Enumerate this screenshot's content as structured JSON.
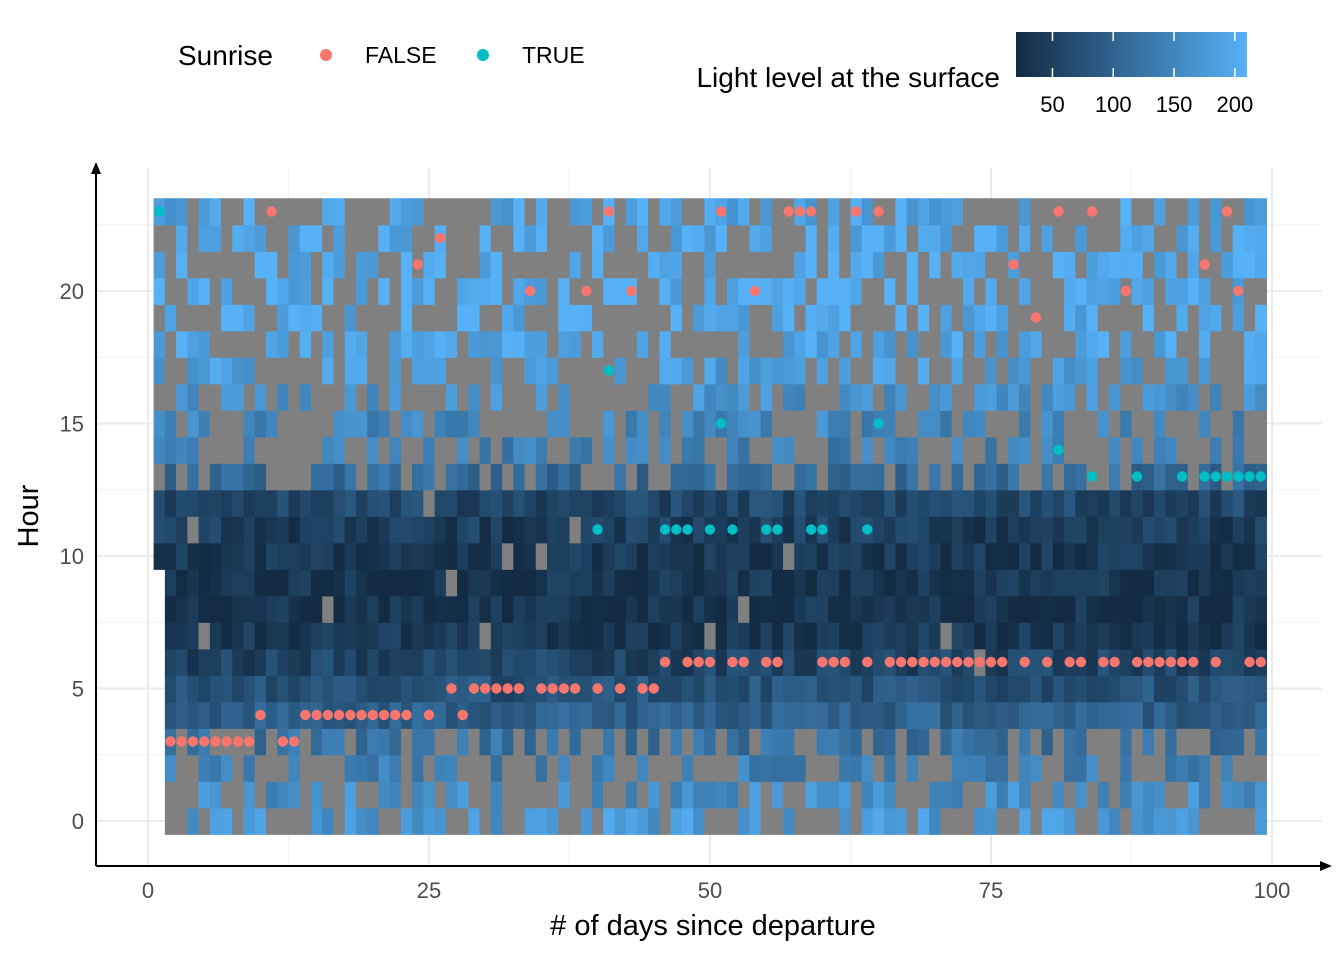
{
  "chart_data": {
    "type": "heatmap",
    "xlabel": "# of days since departure",
    "ylabel": "Hour",
    "xlim": [
      -1,
      100.5
    ],
    "ylim": [
      -1.7,
      24.4
    ],
    "x_ticks": [
      0,
      25,
      50,
      75,
      100
    ],
    "y_ticks": [
      0,
      5,
      10,
      15,
      20
    ],
    "grid": true,
    "colorbar": {
      "title": "Light level at the surface",
      "ticks": [
        50,
        100,
        150,
        200
      ],
      "range": [
        20,
        210
      ],
      "low_color": "#132B43",
      "high_color": "#56B1F7",
      "na_color": "#808080"
    },
    "legend": {
      "title": "Sunrise",
      "position": "top",
      "entries": [
        {
          "label": "FALSE",
          "color": "#F8766D"
        },
        {
          "label": "TRUE",
          "color": "#00BFC4"
        }
      ]
    },
    "heatmap_note_days": [
      1,
      99
    ],
    "hour_profile": [
      {
        "hour": 0,
        "level": 175
      },
      {
        "hour": 1,
        "level": 160
      },
      {
        "hour": 2,
        "level": 140
      },
      {
        "hour": 3,
        "level": 120
      },
      {
        "hour": 4,
        "level": 95
      },
      {
        "hour": 5,
        "level": 75
      },
      {
        "hour": 6,
        "level": 55
      },
      {
        "hour": 7,
        "level": 35
      },
      {
        "hour": 8,
        "level": 30
      },
      {
        "hour": 9,
        "level": 30
      },
      {
        "hour": 10,
        "level": 35
      },
      {
        "hour": 11,
        "level": 45
      },
      {
        "hour": 12,
        "level": 60
      },
      {
        "hour": 13,
        "level": 110
      },
      {
        "hour": 14,
        "level": 140
      },
      {
        "hour": 15,
        "level": 150
      },
      {
        "hour": 16,
        "level": 165
      },
      {
        "hour": 17,
        "level": 180
      },
      {
        "hour": 18,
        "level": 190
      },
      {
        "hour": 19,
        "level": 195
      },
      {
        "hour": 20,
        "level": 200
      },
      {
        "hour": 21,
        "level": 200
      },
      {
        "hour": 22,
        "level": 195
      },
      {
        "hour": 23,
        "level": 190
      }
    ],
    "sunrise_points": [
      {
        "day": 1,
        "hour": 23,
        "sunrise": true
      },
      {
        "day": 2,
        "hour": 3,
        "sunrise": false
      },
      {
        "day": 3,
        "hour": 3,
        "sunrise": false
      },
      {
        "day": 4,
        "hour": 3,
        "sunrise": false
      },
      {
        "day": 5,
        "hour": 3,
        "sunrise": false
      },
      {
        "day": 6,
        "hour": 3,
        "sunrise": false
      },
      {
        "day": 7,
        "hour": 3,
        "sunrise": false
      },
      {
        "day": 8,
        "hour": 3,
        "sunrise": false
      },
      {
        "day": 9,
        "hour": 3,
        "sunrise": false
      },
      {
        "day": 10,
        "hour": 4,
        "sunrise": false
      },
      {
        "day": 11,
        "hour": 23,
        "sunrise": false
      },
      {
        "day": 12,
        "hour": 3,
        "sunrise": false
      },
      {
        "day": 13,
        "hour": 3,
        "sunrise": false
      },
      {
        "day": 14,
        "hour": 4,
        "sunrise": false
      },
      {
        "day": 15,
        "hour": 4,
        "sunrise": false
      },
      {
        "day": 16,
        "hour": 4,
        "sunrise": false
      },
      {
        "day": 17,
        "hour": 4,
        "sunrise": false
      },
      {
        "day": 18,
        "hour": 4,
        "sunrise": false
      },
      {
        "day": 19,
        "hour": 4,
        "sunrise": false
      },
      {
        "day": 20,
        "hour": 4,
        "sunrise": false
      },
      {
        "day": 21,
        "hour": 4,
        "sunrise": false
      },
      {
        "day": 22,
        "hour": 4,
        "sunrise": false
      },
      {
        "day": 23,
        "hour": 4,
        "sunrise": false
      },
      {
        "day": 24,
        "hour": 21,
        "sunrise": false
      },
      {
        "day": 25,
        "hour": 4,
        "sunrise": false
      },
      {
        "day": 26,
        "hour": 22,
        "sunrise": false
      },
      {
        "day": 27,
        "hour": 5,
        "sunrise": false
      },
      {
        "day": 28,
        "hour": 4,
        "sunrise": false
      },
      {
        "day": 29,
        "hour": 5,
        "sunrise": false
      },
      {
        "day": 30,
        "hour": 5,
        "sunrise": false
      },
      {
        "day": 31,
        "hour": 5,
        "sunrise": false
      },
      {
        "day": 32,
        "hour": 5,
        "sunrise": false
      },
      {
        "day": 33,
        "hour": 5,
        "sunrise": false
      },
      {
        "day": 34,
        "hour": 20,
        "sunrise": false
      },
      {
        "day": 35,
        "hour": 5,
        "sunrise": false
      },
      {
        "day": 36,
        "hour": 5,
        "sunrise": false
      },
      {
        "day": 37,
        "hour": 5,
        "sunrise": false
      },
      {
        "day": 38,
        "hour": 5,
        "sunrise": false
      },
      {
        "day": 39,
        "hour": 20,
        "sunrise": false
      },
      {
        "day": 40,
        "hour": 5,
        "sunrise": false
      },
      {
        "day": 40,
        "hour": 11,
        "sunrise": true
      },
      {
        "day": 41,
        "hour": 17,
        "sunrise": true
      },
      {
        "day": 41,
        "hour": 23,
        "sunrise": false
      },
      {
        "day": 42,
        "hour": 5,
        "sunrise": false
      },
      {
        "day": 43,
        "hour": 20,
        "sunrise": false
      },
      {
        "day": 44,
        "hour": 5,
        "sunrise": false
      },
      {
        "day": 45,
        "hour": 5,
        "sunrise": false
      },
      {
        "day": 46,
        "hour": 6,
        "sunrise": false
      },
      {
        "day": 46,
        "hour": 11,
        "sunrise": true
      },
      {
        "day": 47,
        "hour": 11,
        "sunrise": true
      },
      {
        "day": 48,
        "hour": 6,
        "sunrise": false
      },
      {
        "day": 48,
        "hour": 11,
        "sunrise": true
      },
      {
        "day": 49,
        "hour": 6,
        "sunrise": false
      },
      {
        "day": 50,
        "hour": 6,
        "sunrise": false
      },
      {
        "day": 50,
        "hour": 11,
        "sunrise": true
      },
      {
        "day": 51,
        "hour": 15,
        "sunrise": true
      },
      {
        "day": 51,
        "hour": 23,
        "sunrise": false
      },
      {
        "day": 52,
        "hour": 6,
        "sunrise": false
      },
      {
        "day": 52,
        "hour": 11,
        "sunrise": true
      },
      {
        "day": 53,
        "hour": 6,
        "sunrise": false
      },
      {
        "day": 54,
        "hour": 20,
        "sunrise": false
      },
      {
        "day": 55,
        "hour": 6,
        "sunrise": false
      },
      {
        "day": 55,
        "hour": 11,
        "sunrise": true
      },
      {
        "day": 56,
        "hour": 6,
        "sunrise": false
      },
      {
        "day": 56,
        "hour": 11,
        "sunrise": true
      },
      {
        "day": 57,
        "hour": 23,
        "sunrise": false
      },
      {
        "day": 58,
        "hour": 23,
        "sunrise": false
      },
      {
        "day": 59,
        "hour": 23,
        "sunrise": false
      },
      {
        "day": 59,
        "hour": 11,
        "sunrise": true
      },
      {
        "day": 60,
        "hour": 6,
        "sunrise": false
      },
      {
        "day": 60,
        "hour": 11,
        "sunrise": true
      },
      {
        "day": 61,
        "hour": 6,
        "sunrise": false
      },
      {
        "day": 62,
        "hour": 6,
        "sunrise": false
      },
      {
        "day": 63,
        "hour": 23,
        "sunrise": false
      },
      {
        "day": 64,
        "hour": 6,
        "sunrise": false
      },
      {
        "day": 64,
        "hour": 11,
        "sunrise": true
      },
      {
        "day": 65,
        "hour": 15,
        "sunrise": true
      },
      {
        "day": 65,
        "hour": 23,
        "sunrise": false
      },
      {
        "day": 66,
        "hour": 6,
        "sunrise": false
      },
      {
        "day": 67,
        "hour": 6,
        "sunrise": false
      },
      {
        "day": 68,
        "hour": 6,
        "sunrise": false
      },
      {
        "day": 69,
        "hour": 6,
        "sunrise": false
      },
      {
        "day": 70,
        "hour": 6,
        "sunrise": false
      },
      {
        "day": 71,
        "hour": 6,
        "sunrise": false
      },
      {
        "day": 72,
        "hour": 6,
        "sunrise": false
      },
      {
        "day": 73,
        "hour": 6,
        "sunrise": false
      },
      {
        "day": 74,
        "hour": 6,
        "sunrise": false
      },
      {
        "day": 75,
        "hour": 6,
        "sunrise": false
      },
      {
        "day": 76,
        "hour": 6,
        "sunrise": false
      },
      {
        "day": 77,
        "hour": 21,
        "sunrise": false
      },
      {
        "day": 78,
        "hour": 6,
        "sunrise": false
      },
      {
        "day": 79,
        "hour": 19,
        "sunrise": false
      },
      {
        "day": 80,
        "hour": 6,
        "sunrise": false
      },
      {
        "day": 81,
        "hour": 14,
        "sunrise": true
      },
      {
        "day": 81,
        "hour": 23,
        "sunrise": false
      },
      {
        "day": 82,
        "hour": 6,
        "sunrise": false
      },
      {
        "day": 83,
        "hour": 6,
        "sunrise": false
      },
      {
        "day": 84,
        "hour": 13,
        "sunrise": true
      },
      {
        "day": 84,
        "hour": 23,
        "sunrise": false
      },
      {
        "day": 85,
        "hour": 6,
        "sunrise": false
      },
      {
        "day": 86,
        "hour": 6,
        "sunrise": false
      },
      {
        "day": 87,
        "hour": 20,
        "sunrise": false
      },
      {
        "day": 88,
        "hour": 13,
        "sunrise": true
      },
      {
        "day": 88,
        "hour": 6,
        "sunrise": false
      },
      {
        "day": 89,
        "hour": 6,
        "sunrise": false
      },
      {
        "day": 90,
        "hour": 6,
        "sunrise": false
      },
      {
        "day": 91,
        "hour": 6,
        "sunrise": false
      },
      {
        "day": 92,
        "hour": 13,
        "sunrise": true
      },
      {
        "day": 92,
        "hour": 6,
        "sunrise": false
      },
      {
        "day": 93,
        "hour": 6,
        "sunrise": false
      },
      {
        "day": 94,
        "hour": 21,
        "sunrise": false
      },
      {
        "day": 94,
        "hour": 13,
        "sunrise": true
      },
      {
        "day": 95,
        "hour": 6,
        "sunrise": false
      },
      {
        "day": 95,
        "hour": 13,
        "sunrise": true
      },
      {
        "day": 96,
        "hour": 23,
        "sunrise": false
      },
      {
        "day": 96,
        "hour": 13,
        "sunrise": true
      },
      {
        "day": 97,
        "hour": 20,
        "sunrise": false
      },
      {
        "day": 97,
        "hour": 13,
        "sunrise": true
      },
      {
        "day": 98,
        "hour": 6,
        "sunrise": false
      },
      {
        "day": 98,
        "hour": 13,
        "sunrise": true
      },
      {
        "day": 99,
        "hour": 6,
        "sunrise": false
      },
      {
        "day": 99,
        "hour": 13,
        "sunrise": true
      }
    ]
  }
}
